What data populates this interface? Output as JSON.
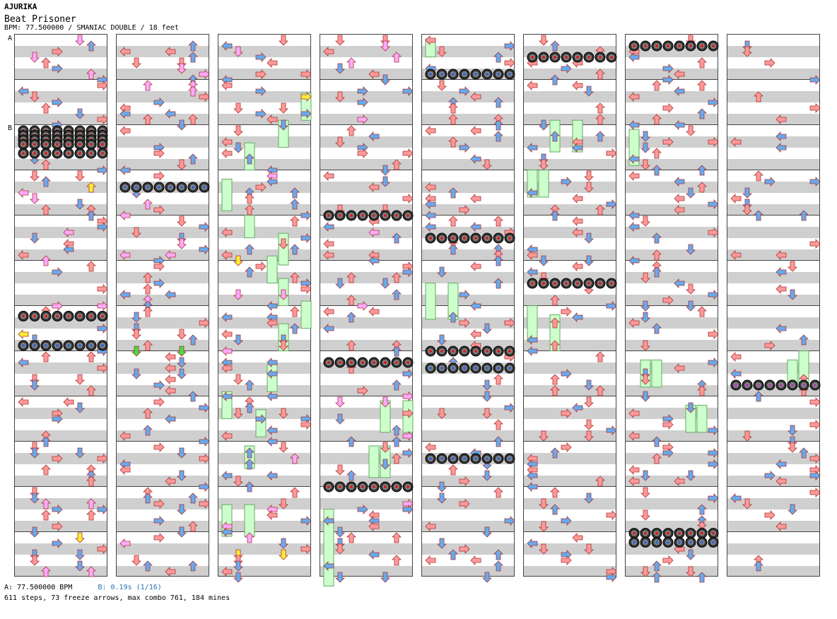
{
  "header": {
    "artist": "AJURIKA",
    "title": "Beat Prisoner",
    "bpm_line": "BPM: 77.500000 / SMANIAC DOUBLE / 18 feet"
  },
  "markers": {
    "a": "A",
    "b": "B"
  },
  "footer": {
    "bpm_a": "A: 77.500000 BPM",
    "bpm_b": "B: 0.19s (1/16)",
    "stats": "611 steps, 73 freeze arrows, max combo 761, 184 mines"
  },
  "chart": {
    "columns": 8,
    "measures_per_column": 12,
    "lanes": 8,
    "colors": {
      "arrow_red": "#ff9999",
      "arrow_blue": "#66aaee",
      "arrow_pink": "#ffaaff",
      "arrow_yellow": "#ffee33",
      "arrow_green": "#44dd44",
      "freeze": "#ccffcc",
      "mine": "#222222",
      "stripe_gray": "#cfcfcf"
    },
    "mine_rows": [
      {
        "col": 0,
        "m": 2,
        "pos": 0.0,
        "n": 8,
        "ring": "red"
      },
      {
        "col": 0,
        "m": 2,
        "pos": 0.1,
        "n": 8,
        "ring": "red"
      },
      {
        "col": 0,
        "m": 2,
        "pos": 0.2,
        "n": 8,
        "ring": "red"
      },
      {
        "col": 0,
        "m": 2,
        "pos": 0.3,
        "n": 8,
        "ring": "red"
      },
      {
        "col": 0,
        "m": 2,
        "pos": 0.5,
        "n": 8,
        "ring": "red"
      },
      {
        "col": 0,
        "m": 6,
        "pos": 0.1,
        "n": 8,
        "ring": "red"
      },
      {
        "col": 0,
        "m": 6,
        "pos": 0.75,
        "n": 8,
        "ring": "blue"
      },
      {
        "col": 1,
        "m": 3,
        "pos": 0.25,
        "n": 8,
        "ring": "blue"
      },
      {
        "col": 3,
        "m": 3,
        "pos": 0.875,
        "n": 8,
        "ring": "red"
      },
      {
        "col": 3,
        "m": 7,
        "pos": 0.125,
        "n": 8,
        "ring": "red"
      },
      {
        "col": 3,
        "m": 9,
        "pos": 0.875,
        "n": 8,
        "ring": "red"
      },
      {
        "col": 4,
        "m": 0,
        "pos": 0.75,
        "n": 8,
        "ring": "blue"
      },
      {
        "col": 4,
        "m": 4,
        "pos": 0.375,
        "n": 8,
        "ring": "red"
      },
      {
        "col": 4,
        "m": 6,
        "pos": 0.875,
        "n": 8,
        "ring": "red"
      },
      {
        "col": 4,
        "m": 7,
        "pos": 0.25,
        "n": 8,
        "ring": "blue"
      },
      {
        "col": 4,
        "m": 9,
        "pos": 0.25,
        "n": 8,
        "ring": "blue"
      },
      {
        "col": 5,
        "m": 0,
        "pos": 0.375,
        "n": 8,
        "ring": "red"
      },
      {
        "col": 5,
        "m": 5,
        "pos": 0.375,
        "n": 8,
        "ring": "red"
      },
      {
        "col": 6,
        "m": 0,
        "pos": 0.125,
        "n": 8,
        "ring": "red"
      },
      {
        "col": 6,
        "m": 11,
        "pos": -0.1,
        "n": 8,
        "ring": "red"
      },
      {
        "col": 6,
        "m": 11,
        "pos": 0.1,
        "n": 8,
        "ring": "blue"
      },
      {
        "col": 7,
        "m": 7,
        "pos": 0.625,
        "n": 8,
        "ring": "purple"
      }
    ],
    "freezes": [
      {
        "col": 2,
        "lane": 7,
        "from": 1.2,
        "to": 1.8
      },
      {
        "col": 2,
        "lane": 5,
        "from": 1.8,
        "to": 2.4
      },
      {
        "col": 2,
        "lane": 2,
        "from": 2.3,
        "to": 2.9
      },
      {
        "col": 2,
        "lane": 0,
        "from": 3.1,
        "to": 3.8
      },
      {
        "col": 2,
        "lane": 2,
        "from": 3.9,
        "to": 4.4
      },
      {
        "col": 2,
        "lane": 5,
        "from": 4.3,
        "to": 5.0
      },
      {
        "col": 2,
        "lane": 4,
        "from": 4.8,
        "to": 5.4
      },
      {
        "col": 2,
        "lane": 5,
        "from": 5.3,
        "to": 5.9
      },
      {
        "col": 2,
        "lane": 7,
        "from": 5.8,
        "to": 6.4
      },
      {
        "col": 2,
        "lane": 5,
        "from": 6.3,
        "to": 6.9
      },
      {
        "col": 2,
        "lane": 4,
        "from": 7.2,
        "to": 7.8
      },
      {
        "col": 2,
        "lane": 0,
        "from": 7.8,
        "to": 8.4
      },
      {
        "col": 2,
        "lane": 3,
        "from": 8.2,
        "to": 8.8
      },
      {
        "col": 2,
        "lane": 2,
        "from": 9.0,
        "to": 9.5
      },
      {
        "col": 2,
        "lane": 0,
        "from": 10.3,
        "to": 11.0
      },
      {
        "col": 2,
        "lane": 2,
        "from": 10.3,
        "to": 11.0
      },
      {
        "col": 3,
        "lane": 5,
        "from": 8.0,
        "to": 8.7
      },
      {
        "col": 3,
        "lane": 7,
        "from": 8.0,
        "to": 8.7
      },
      {
        "col": 3,
        "lane": 4,
        "from": 9.0,
        "to": 9.7
      },
      {
        "col": 3,
        "lane": 5,
        "from": 9.0,
        "to": 9.7
      },
      {
        "col": 3,
        "lane": 0,
        "from": 10.4,
        "to": 12.1
      },
      {
        "col": 4,
        "lane": 0,
        "from": 0.0,
        "to": 0.4
      },
      {
        "col": 4,
        "lane": 0,
        "from": 5.4,
        "to": 6.2
      },
      {
        "col": 4,
        "lane": 2,
        "from": 5.4,
        "to": 6.2
      },
      {
        "col": 5,
        "lane": 2,
        "from": 1.8,
        "to": 2.5
      },
      {
        "col": 5,
        "lane": 4,
        "from": 1.8,
        "to": 2.5
      },
      {
        "col": 5,
        "lane": 0,
        "from": 2.9,
        "to": 3.5
      },
      {
        "col": 5,
        "lane": 1,
        "from": 2.9,
        "to": 3.5
      },
      {
        "col": 5,
        "lane": 0,
        "from": 5.9,
        "to": 6.7
      },
      {
        "col": 5,
        "lane": 2,
        "from": 6.1,
        "to": 6.9
      },
      {
        "col": 6,
        "lane": 0,
        "from": 2.0,
        "to": 2.8
      },
      {
        "col": 6,
        "lane": 1,
        "from": 7.1,
        "to": 7.7
      },
      {
        "col": 6,
        "lane": 2,
        "from": 7.1,
        "to": 7.7
      },
      {
        "col": 6,
        "lane": 5,
        "from": 8.1,
        "to": 8.7
      },
      {
        "col": 6,
        "lane": 6,
        "from": 8.1,
        "to": 8.7
      },
      {
        "col": 7,
        "lane": 5,
        "from": 7.1,
        "to": 7.7
      },
      {
        "col": 7,
        "lane": 6,
        "from": 6.9,
        "to": 7.7
      }
    ]
  }
}
